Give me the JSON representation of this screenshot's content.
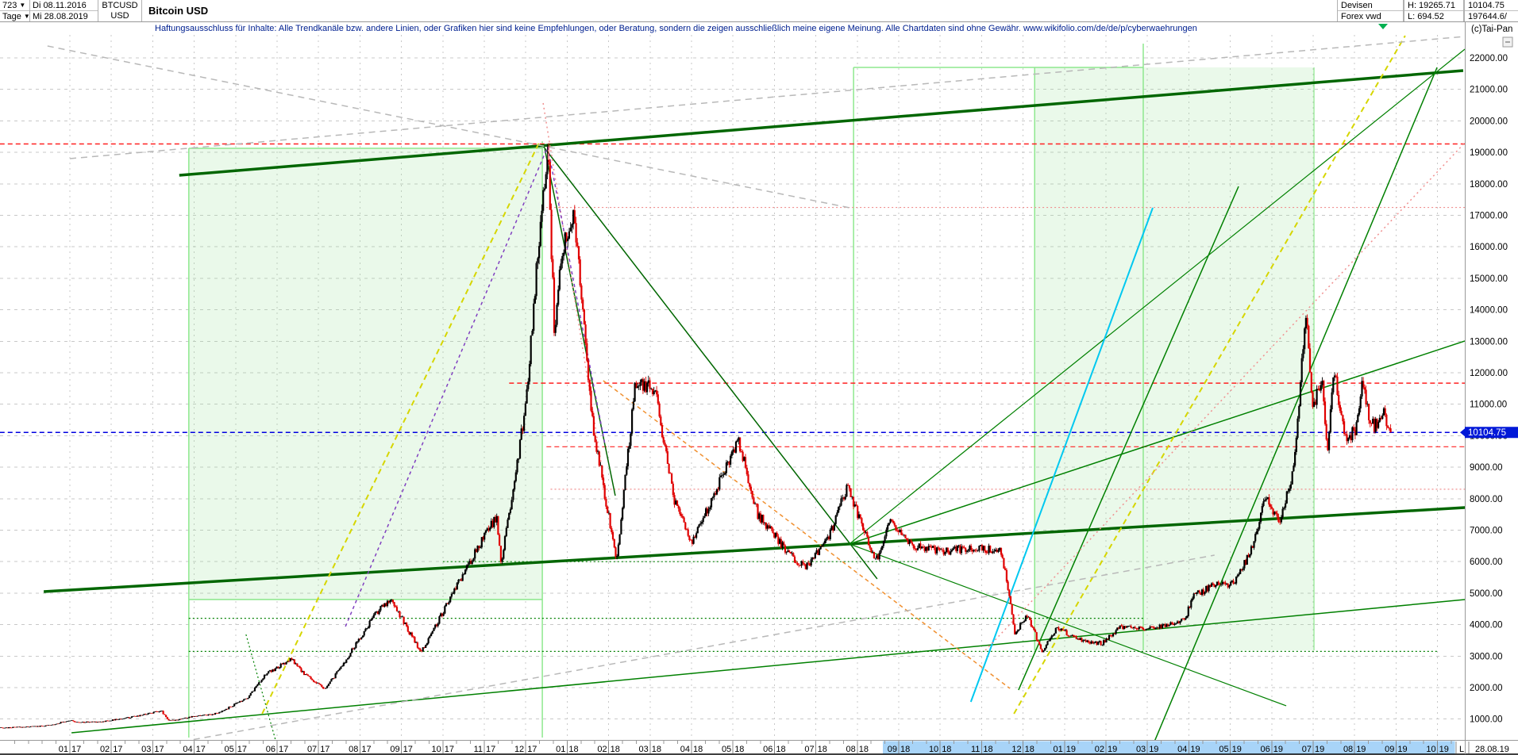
{
  "header": {
    "period_count": "723",
    "timeframe": "Tage",
    "start_date": "Di 08.11.2016",
    "end_date": "Mi 28.08.2019",
    "symbol": "BTCUSD",
    "currency": "USD",
    "title": "Bitcoin USD",
    "exchange": "Devisen",
    "feed": "Forex vwd",
    "high_label": "H: 19265.71",
    "low_label": "L: 694.52",
    "last_price": "10104.75",
    "volume": "197644.6/",
    "copyright": "(c)Tai-Pan"
  },
  "disclaimer": "Haftungsausschluss für Inhalte: Alle Trendkanäle bzw. andere Linien, oder Grafiken hier sind keine Empfehlungen, oder Beratung, sondern die zeigen ausschließlich meine eigene Meinung. Alle Chartdaten sind ohne Gewähr.  www.wikifolio.com/de/de/p/cyberwaehrungen",
  "price_axis": {
    "labels": [
      "22000.00",
      "21000.00",
      "20000.00",
      "19000.00",
      "18000.00",
      "17000.00",
      "16000.00",
      "15000.00",
      "14000.00",
      "13000.00",
      "12000.00",
      "11000.00",
      "10000.00",
      "9000.00",
      "8000.00",
      "7000.00",
      "6000.00",
      "5000.00",
      "4000.00",
      "3000.00",
      "2000.00",
      "1000.00"
    ]
  },
  "date_axis": {
    "months": [
      {
        "m": "01",
        "y": "17"
      },
      {
        "m": "02",
        "y": "17"
      },
      {
        "m": "03",
        "y": "17"
      },
      {
        "m": "04",
        "y": "17"
      },
      {
        "m": "05",
        "y": "17"
      },
      {
        "m": "06",
        "y": "17"
      },
      {
        "m": "07",
        "y": "17"
      },
      {
        "m": "08",
        "y": "17"
      },
      {
        "m": "09",
        "y": "17"
      },
      {
        "m": "10",
        "y": "17"
      },
      {
        "m": "11",
        "y": "17"
      },
      {
        "m": "12",
        "y": "17"
      },
      {
        "m": "01",
        "y": "18"
      },
      {
        "m": "02",
        "y": "18"
      },
      {
        "m": "03",
        "y": "18"
      },
      {
        "m": "04",
        "y": "18"
      },
      {
        "m": "05",
        "y": "18"
      },
      {
        "m": "06",
        "y": "18"
      },
      {
        "m": "07",
        "y": "18"
      },
      {
        "m": "08",
        "y": "18"
      },
      {
        "m": "09",
        "y": "18"
      },
      {
        "m": "10",
        "y": "18"
      },
      {
        "m": "11",
        "y": "18"
      },
      {
        "m": "12",
        "y": "18"
      },
      {
        "m": "01",
        "y": "19"
      },
      {
        "m": "02",
        "y": "19"
      },
      {
        "m": "03",
        "y": "19"
      },
      {
        "m": "04",
        "y": "19"
      },
      {
        "m": "05",
        "y": "19"
      },
      {
        "m": "06",
        "y": "19"
      },
      {
        "m": "07",
        "y": "19"
      },
      {
        "m": "08",
        "y": "19"
      },
      {
        "m": "09",
        "y": "19"
      },
      {
        "m": "10",
        "y": "19"
      }
    ],
    "corner_marker": "L",
    "corner_date": "28.08.19",
    "highlight_from_month_index": 20,
    "highlight_to_month_index": 33
  },
  "badge": {
    "value": "10104.75"
  },
  "colors": {
    "thick_green": "#006600",
    "green": "#008000",
    "light_green_edge": "#8ee88e",
    "box_fill": "rgba(150,225,150,0.20)",
    "cyan": "#00c8f0",
    "yellow": "#d6d600",
    "salmon": "#f09090",
    "purple": "#8040c0",
    "orange": "#f09030",
    "gray_line": "#b8b8b8",
    "red_line": "#ff2020",
    "blue_line": "#0000e0",
    "grid": "#c8c8c8",
    "highlight_blue": "#a8d4f8",
    "badge_blue": "#0018d8",
    "candle_up": "#000000",
    "candle_down": "#e00000"
  },
  "chart_data": {
    "type": "candlestick",
    "symbol": "BTCUSD",
    "title": "Bitcoin USD",
    "first_date": "08.11.2016",
    "last_date": "28.08.2019",
    "high": 19265.71,
    "low": 694.52,
    "last": 10104.75,
    "y_range": [
      1000,
      22000
    ],
    "y_step": 1000,
    "price_keypoints": [
      [
        -1.77,
        710
      ],
      [
        -1.2,
        740
      ],
      [
        -0.5,
        790
      ],
      [
        0.0,
        963
      ],
      [
        0.17,
        890
      ],
      [
        0.8,
        920
      ],
      [
        1.5,
        1060
      ],
      [
        2.2,
        1270
      ],
      [
        2.4,
        940
      ],
      [
        3.0,
        1080
      ],
      [
        3.6,
        1190
      ],
      [
        4.3,
        1700
      ],
      [
        4.7,
        2400
      ],
      [
        5.35,
        2900
      ],
      [
        5.6,
        2500
      ],
      [
        6.15,
        1940
      ],
      [
        6.6,
        2750
      ],
      [
        7.4,
        4390
      ],
      [
        7.75,
        4830
      ],
      [
        8.47,
        3100
      ],
      [
        9.0,
        4400
      ],
      [
        9.85,
        6450
      ],
      [
        10.3,
        7450
      ],
      [
        10.4,
        5880
      ],
      [
        11.0,
        10900
      ],
      [
        11.35,
        16800
      ],
      [
        11.53,
        19265
      ],
      [
        11.7,
        13000
      ],
      [
        11.85,
        15800
      ],
      [
        12.16,
        17200
      ],
      [
        12.6,
        10500
      ],
      [
        13.19,
        6000
      ],
      [
        13.65,
        11700
      ],
      [
        14.1,
        11500
      ],
      [
        14.6,
        7900
      ],
      [
        15.0,
        6600
      ],
      [
        15.8,
        8900
      ],
      [
        16.13,
        9900
      ],
      [
        16.6,
        7500
      ],
      [
        17.3,
        6300
      ],
      [
        17.76,
        5800
      ],
      [
        18.3,
        6700
      ],
      [
        18.76,
        8400
      ],
      [
        19.45,
        6000
      ],
      [
        19.8,
        7300
      ],
      [
        20.3,
        6500
      ],
      [
        21.0,
        6350
      ],
      [
        21.9,
        6400
      ],
      [
        22.45,
        6350
      ],
      [
        22.6,
        5500
      ],
      [
        22.8,
        3700
      ],
      [
        23.1,
        4300
      ],
      [
        23.47,
        3150
      ],
      [
        23.8,
        3900
      ],
      [
        24.3,
        3550
      ],
      [
        24.9,
        3400
      ],
      [
        25.3,
        3900
      ],
      [
        26.0,
        3850
      ],
      [
        26.9,
        4150
      ],
      [
        27.1,
        4900
      ],
      [
        27.6,
        5250
      ],
      [
        28.1,
        5300
      ],
      [
        28.5,
        6350
      ],
      [
        28.85,
        8000
      ],
      [
        29.2,
        7300
      ],
      [
        29.5,
        8700
      ],
      [
        29.83,
        13800
      ],
      [
        30.0,
        10800
      ],
      [
        30.2,
        11800
      ],
      [
        30.35,
        9600
      ],
      [
        30.5,
        12200
      ],
      [
        30.65,
        10600
      ],
      [
        30.85,
        9900
      ],
      [
        31.05,
        10300
      ],
      [
        31.2,
        11800
      ],
      [
        31.35,
        10400
      ],
      [
        31.55,
        10300
      ],
      [
        31.7,
        10700
      ],
      [
        31.87,
        10104.75
      ]
    ],
    "trendlines": [
      [
        "top-channel",
        2.64,
        18272,
        33.62,
        21597,
        "thick_green",
        3.5,
        null
      ],
      [
        "bottom-channel",
        -0.63,
        5049,
        33.66,
        7718,
        "thick_green",
        3.5,
        null
      ],
      [
        "support-2016",
        0.04,
        565,
        33.66,
        4796,
        "green",
        1.5,
        null
      ],
      [
        "peak-to-apex",
        11.4,
        19229,
        19.48,
        5452,
        "thick_green",
        1.5,
        null
      ],
      [
        "peak-steep-drop",
        11.46,
        19103,
        13.16,
        8096,
        "thick_green",
        1.5,
        null
      ],
      [
        "apex-fan-steep",
        18.81,
        6561,
        33.66,
        22277,
        "green",
        1.2,
        null
      ],
      [
        "apex-fan-mid",
        18.81,
        6561,
        33.66,
        13008,
        "green",
        1.5,
        null
      ],
      [
        "apex-fan-down",
        18.81,
        6561,
        29.35,
        1421,
        "green",
        1.2,
        null
      ],
      [
        "rally-2019-a",
        22.89,
        1924,
        28.2,
        17919,
        "green",
        1.5,
        null
      ],
      [
        "rally-2019-b",
        26.13,
        161,
        32.99,
        21698,
        "green",
        1.5,
        null
      ],
      [
        "cyan-rally",
        21.74,
        1546,
        26.13,
        17239,
        "cyan",
        2,
        null
      ],
      [
        "yellow-2017",
        4.64,
        1169,
        11.34,
        19355,
        "yellow",
        2,
        "7,5"
      ],
      [
        "yellow-2019",
        22.78,
        1169,
        32.22,
        22705,
        "yellow",
        2,
        "7,5"
      ],
      [
        "salmon-2019",
        22.09,
        3184,
        33.66,
        19305,
        "salmon",
        1.5,
        "2,4"
      ],
      [
        "salmon-peak-drop",
        11.42,
        20565,
        12.93,
        8222,
        "salmon",
        1.5,
        "2,4"
      ],
      [
        "purple-rally-2017",
        6.65,
        3940,
        11.53,
        19178,
        "purple",
        1.5,
        "4,4"
      ],
      [
        "purple-drop-2018",
        11.53,
        19178,
        12.91,
        9733,
        "purple",
        1.5,
        "4,4"
      ],
      [
        "orange-decline-2018",
        12.87,
        11748,
        22.68,
        1975,
        "orange",
        1.5,
        "5,4"
      ],
      [
        "gray-rising",
        0,
        18801,
        33.66,
        22680,
        "gray_line",
        1.5,
        "8,6"
      ],
      [
        "gray-falling",
        -0.54,
        22378,
        18.81,
        17240,
        "gray_line",
        1.5,
        "8,6"
      ],
      [
        "gray-bottom-rising",
        2.72,
        287,
        27.62,
        6206,
        "gray_line",
        1.5,
        "8,6"
      ],
      [
        "green-dotted-steep",
        4.25,
        3688,
        5.02,
        60,
        "green",
        1.2,
        "2,3"
      ]
    ],
    "horizontal_lines": [
      [
        19265.71,
        -1.69,
        33.66,
        "red_line",
        1.5,
        "6,4"
      ],
      [
        17250,
        11.4,
        33.66,
        "salmon",
        1.2,
        "2,3"
      ],
      [
        11670,
        10.6,
        33.66,
        "red_line",
        1.5,
        "6,4"
      ],
      [
        9650,
        11.5,
        33.66,
        "red_line",
        1.2,
        "6,4"
      ],
      [
        8300,
        11.6,
        33.66,
        "salmon",
        1.2,
        "2,3"
      ],
      [
        10104.75,
        -1.69,
        33.66,
        "blue_line",
        1.5,
        "6,4"
      ],
      [
        6000,
        9.0,
        20.5,
        "green",
        1.2,
        "2,3"
      ],
      [
        4800,
        2.87,
        11.4,
        "light_green_edge",
        1.5,
        null
      ],
      [
        19129,
        2.87,
        11.4,
        "light_green_edge",
        1.5,
        null
      ],
      [
        21698,
        18.91,
        25.9,
        "light_green_edge",
        1.5,
        null
      ],
      [
        4200,
        2.87,
        25.9,
        "green",
        1.2,
        "2,3"
      ],
      [
        3150,
        2.87,
        33.0,
        "green",
        1.2,
        "2,3"
      ]
    ],
    "vertical_lines": [
      [
        2.87,
        19129,
        413,
        "light_green_edge",
        1.5
      ],
      [
        11.4,
        19350,
        413,
        "light_green_edge",
        1.5
      ],
      [
        18.91,
        21698,
        6561,
        "light_green_edge",
        1.5
      ],
      [
        23.28,
        21698,
        3184,
        "light_green_edge",
        1.5
      ],
      [
        25.9,
        22453,
        3184,
        "light_green_edge",
        1.5
      ],
      [
        30.02,
        21698,
        3184,
        "light_green_edge",
        1.2
      ]
    ],
    "boxes": [
      [
        2.87,
        19129,
        11.4,
        4771
      ],
      [
        23.28,
        21698,
        30.02,
        3184
      ]
    ]
  }
}
